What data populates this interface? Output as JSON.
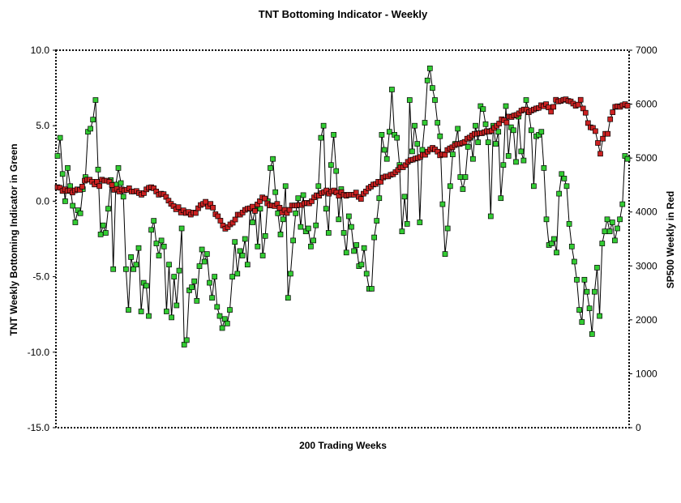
{
  "chart_data": {
    "type": "line",
    "title": "TNT Bottoming Indicator - Weekly",
    "xlabel": "200 Trading Weeks",
    "ylabel_left": "TNT Weekly Bottoming Indicator in Green",
    "ylabel_right": "SP500 Weekly in Red",
    "ylim_left": [
      -15,
      10
    ],
    "ylim_right": [
      0,
      7000
    ],
    "yticks_left": [
      "10.0",
      "5.0",
      "0.0",
      "-5.0",
      "-10.0",
      "-15.0"
    ],
    "yticks_right": [
      "7000",
      "6000",
      "5000",
      "4000",
      "3000",
      "2000",
      "1000",
      "0"
    ],
    "grid": false,
    "legend": "none",
    "series": [
      {
        "axis": "left",
        "color": "#33cc33",
        "marker": "square",
        "values": [
          3.0,
          4.2,
          1.8,
          0.0,
          2.2,
          1.0,
          -0.3,
          -1.4,
          -0.6,
          -0.8,
          0.8,
          1.6,
          4.6,
          4.8,
          5.4,
          6.7,
          2.1,
          -2.2,
          -1.6,
          -2.1,
          -0.5,
          1.4,
          -4.5,
          1.1,
          2.2,
          1.2,
          0.3,
          -4.5,
          -7.2,
          -3.7,
          -4.5,
          -4.2,
          -3.1,
          -7.3,
          -5.4,
          -5.6,
          -7.6,
          -1.9,
          -1.3,
          -2.8,
          -3.6,
          -2.6,
          -3.0,
          -7.3,
          -4.2,
          -7.7,
          -5.0,
          -6.9,
          -4.6,
          -1.8,
          -9.5,
          -9.2,
          -5.9,
          -5.7,
          -5.3,
          -6.6,
          -4.3,
          -3.2,
          -4.0,
          -3.5,
          -5.4,
          -6.4,
          -5.0,
          -7.0,
          -7.6,
          -8.4,
          -7.8,
          -8.1,
          -7.2,
          -5.0,
          -2.7,
          -4.8,
          -3.3,
          -3.6,
          -2.5,
          -4.2,
          -0.5,
          -1.4,
          -0.5,
          -3.0,
          -0.5,
          -3.6,
          -2.3,
          0.0,
          2.2,
          2.8,
          0.6,
          -0.8,
          -2.2,
          -1.2,
          1.0,
          -6.4,
          -4.8,
          -2.6,
          -0.8,
          0.2,
          -1.7,
          0.4,
          -2.0,
          -1.8,
          -3.0,
          -2.6,
          -1.6,
          1.0,
          4.2,
          5.0,
          -0.5,
          -2.1,
          2.4,
          4.4,
          2.0,
          -1.2,
          0.8,
          -2.1,
          -3.4,
          -1.0,
          -1.7,
          -3.3,
          -2.9,
          -4.3,
          -4.2,
          -3.1,
          -4.8,
          -5.8,
          -5.8,
          -2.4,
          -1.3,
          0.2,
          4.4,
          3.4,
          2.8,
          4.6,
          7.4,
          4.4,
          4.2,
          2.4,
          -2.0,
          0.3,
          -1.5,
          6.7,
          3.3,
          5.0,
          3.8,
          -1.4,
          3.4,
          5.2,
          8.0,
          8.8,
          7.5,
          6.7,
          5.2,
          4.3,
          -0.2,
          -3.5,
          -1.8,
          1.0,
          3.1,
          3.8,
          4.8,
          1.6,
          0.8,
          1.6,
          3.6,
          4.2,
          2.8,
          5.0,
          3.9,
          6.3,
          6.1,
          5.1,
          3.9,
          -1.0,
          5.0,
          3.8,
          4.6,
          0.2,
          2.4,
          6.3,
          3.0,
          4.9,
          4.7,
          2.6,
          5.6,
          3.3,
          2.7,
          6.7,
          5.9,
          4.7,
          1.0,
          4.3,
          4.4,
          4.6,
          2.2,
          -1.2,
          -2.9,
          -2.8,
          -2.5,
          -3.4,
          0.5,
          1.8,
          1.5,
          1.0,
          -1.5,
          -3.0,
          -4.0,
          -5.2,
          -7.2,
          -8.0,
          -5.2,
          -6.0,
          -7.1,
          -8.8,
          -6.0,
          -4.4,
          -7.6,
          -2.8,
          -2.0,
          -1.2,
          -2.0,
          -1.4,
          -2.6,
          -1.8,
          -1.2,
          -0.2,
          3.0,
          2.8
        ]
      },
      {
        "axis": "right",
        "color": "#cc2222",
        "marker": "square",
        "values": [
          4460,
          4450,
          4390,
          4420,
          4390,
          4400,
          4360,
          4400,
          4420,
          4410,
          4470,
          4580,
          4600,
          4600,
          4560,
          4510,
          4560,
          4480,
          4600,
          4580,
          4580,
          4560,
          4500,
          4410,
          4430,
          4380,
          4420,
          4400,
          4410,
          4440,
          4380,
          4380,
          4390,
          4350,
          4320,
          4350,
          4420,
          4450,
          4460,
          4440,
          4380,
          4320,
          4340,
          4330,
          4280,
          4210,
          4150,
          4110,
          4050,
          4090,
          3990,
          4030,
          3980,
          4000,
          3950,
          3990,
          3980,
          4070,
          4130,
          4150,
          4190,
          4100,
          4150,
          4080,
          3960,
          3920,
          3840,
          3750,
          3690,
          3720,
          3770,
          3800,
          3860,
          3950,
          3950,
          3990,
          4040,
          4060,
          4070,
          4100,
          4020,
          4140,
          4200,
          4270,
          4250,
          4160,
          4120,
          4120,
          4110,
          4150,
          4080,
          3990,
          4040,
          3980,
          4040,
          4120,
          4120,
          4120,
          4130,
          4130,
          4160,
          4170,
          4160,
          4200,
          4270,
          4310,
          4300,
          4350,
          4370,
          4400,
          4340,
          4380,
          4400,
          4360,
          4300,
          4370,
          4320,
          4300,
          4320,
          4320,
          4320,
          4360,
          4280,
          4240,
          4340,
          4380,
          4440,
          4470,
          4510,
          4520,
          4560,
          4560,
          4640,
          4660,
          4660,
          4690,
          4700,
          4740,
          4780,
          4830,
          4830,
          4870,
          4930,
          4960,
          4970,
          4990,
          5000,
          5020,
          5060,
          5060,
          5120,
          5160,
          5190,
          5160,
          5120,
          5050,
          5070,
          5060,
          5150,
          5180,
          5200,
          5240,
          5260,
          5260,
          5280,
          5300,
          5360,
          5380,
          5420,
          5450,
          5450,
          5460,
          5460,
          5480,
          5500,
          5490,
          5510,
          5560,
          5600,
          5640,
          5720,
          5700,
          5660,
          5770,
          5760,
          5790,
          5800,
          5830,
          5880,
          5900,
          5900,
          5850,
          5880,
          5900,
          5920,
          5930,
          5980,
          5960,
          6000,
          5940,
          5860,
          5950,
          6080,
          6050,
          6060,
          6080,
          6090,
          6060,
          6050,
          6010,
          5970,
          5990,
          6080,
          5920,
          5840,
          5650,
          5570,
          5560,
          5500,
          5280,
          5080,
          5360,
          5450,
          5450,
          5720,
          5850,
          5950,
          5960,
          5950,
          5980,
          6000,
          5970
        ]
      }
    ]
  }
}
